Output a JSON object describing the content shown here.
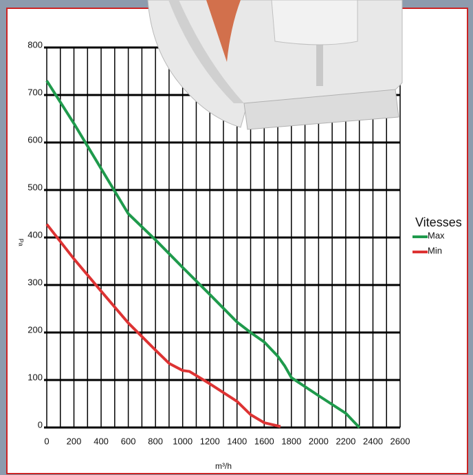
{
  "chart_data": {
    "type": "line",
    "x_label": "m³/h",
    "y_label": "Pa",
    "legend_title": "Vitesses",
    "xlim": [
      0,
      2600
    ],
    "xticks": [
      0,
      200,
      400,
      600,
      800,
      1000,
      1200,
      1400,
      1600,
      1800,
      2000,
      2200,
      2400,
      2600
    ],
    "ylim": [
      0,
      800
    ],
    "yticks": [
      0,
      100,
      200,
      300,
      400,
      500,
      600,
      700,
      800
    ],
    "grid": true,
    "series": [
      {
        "name": "Max",
        "color": "#1f9a4c",
        "x": [
          0,
          200,
          400,
          600,
          800,
          1000,
          1200,
          1400,
          1500,
          1600,
          1700,
          1750,
          1800,
          2000,
          2200,
          2300
        ],
        "values": [
          730,
          640,
          545,
          450,
          395,
          337,
          280,
          222,
          200,
          180,
          150,
          130,
          105,
          67,
          30,
          0
        ]
      },
      {
        "name": "Min",
        "color": "#dd3333",
        "x": [
          0,
          200,
          400,
          600,
          800,
          900,
          1000,
          1050,
          1200,
          1400,
          1500,
          1600,
          1720
        ],
        "values": [
          428,
          355,
          287,
          220,
          163,
          135,
          120,
          118,
          92,
          55,
          27,
          10,
          2
        ]
      }
    ]
  }
}
